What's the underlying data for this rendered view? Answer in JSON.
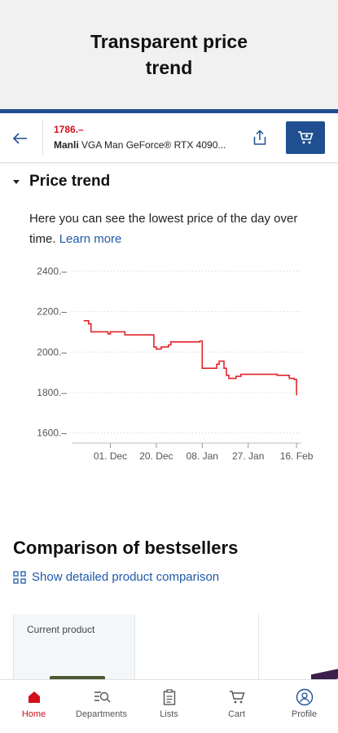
{
  "promo": {
    "title": "Transparent price trend"
  },
  "topbar": {
    "price": "1786.–",
    "brand": "Manli",
    "product": "VGA Man GeForce® RTX 4090..."
  },
  "price_trend": {
    "heading": "Price trend",
    "description": "Here you can see the lowest price of the day over time.",
    "learn_more": "Learn more"
  },
  "chart_data": {
    "type": "line",
    "series": [
      {
        "color": "#e3242b",
        "step": true,
        "points": [
          [
            "2023-11-20",
            2155
          ],
          [
            "2023-11-22",
            2140
          ],
          [
            "2023-11-23",
            2100
          ],
          [
            "2023-11-30",
            2090
          ],
          [
            "2023-12-01",
            2100
          ],
          [
            "2023-12-07",
            2085
          ],
          [
            "2023-12-18",
            2085
          ],
          [
            "2023-12-19",
            2025
          ],
          [
            "2023-12-20",
            2015
          ],
          [
            "2023-12-22",
            2025
          ],
          [
            "2023-12-25",
            2035
          ],
          [
            "2023-12-26",
            2050
          ],
          [
            "2024-01-07",
            2055
          ],
          [
            "2024-01-08",
            1920
          ],
          [
            "2024-01-14",
            1940
          ],
          [
            "2024-01-15",
            1955
          ],
          [
            "2024-01-17",
            1920
          ],
          [
            "2024-01-18",
            1885
          ],
          [
            "2024-01-19",
            1870
          ],
          [
            "2024-01-22",
            1880
          ],
          [
            "2024-01-24",
            1890
          ],
          [
            "2024-02-08",
            1885
          ],
          [
            "2024-02-13",
            1870
          ],
          [
            "2024-02-15",
            1865
          ],
          [
            "2024-02-16",
            1786
          ]
        ]
      }
    ],
    "y_ticks": [
      {
        "value": 1600,
        "label": "1600.–"
      },
      {
        "value": 1800,
        "label": "1800.–"
      },
      {
        "value": 2000,
        "label": "2000.–"
      },
      {
        "value": 2200,
        "label": "2200.–"
      },
      {
        "value": 2400,
        "label": "2400.–"
      }
    ],
    "x_ticks": [
      {
        "value": "2023-12-01",
        "label": "01. Dec"
      },
      {
        "value": "2023-12-20",
        "label": "20. Dec"
      },
      {
        "value": "2024-01-08",
        "label": "08. Jan"
      },
      {
        "value": "2024-01-27",
        "label": "27. Jan"
      },
      {
        "value": "2024-02-16",
        "label": "16. Feb"
      }
    ],
    "ylim": [
      1550,
      2420
    ],
    "xlim": [
      "2023-11-15",
      "2024-02-18"
    ],
    "grid": "horizontal-dotted"
  },
  "comparison": {
    "title": "Comparison of bestsellers",
    "link": "Show detailed product comparison",
    "current_label": "Current product"
  },
  "tabs": [
    {
      "label": "Home",
      "icon": "home-icon",
      "active": true
    },
    {
      "label": "Departments",
      "icon": "departments-icon",
      "active": false
    },
    {
      "label": "Lists",
      "icon": "lists-icon",
      "active": false
    },
    {
      "label": "Cart",
      "icon": "cart-icon",
      "active": false
    },
    {
      "label": "Profile",
      "icon": "profile-icon",
      "active": false
    }
  ],
  "colors": {
    "accent": "#1f4f91",
    "price": "#d40f1c",
    "chart_line": "#e3242b",
    "link": "#1f5aa8"
  }
}
